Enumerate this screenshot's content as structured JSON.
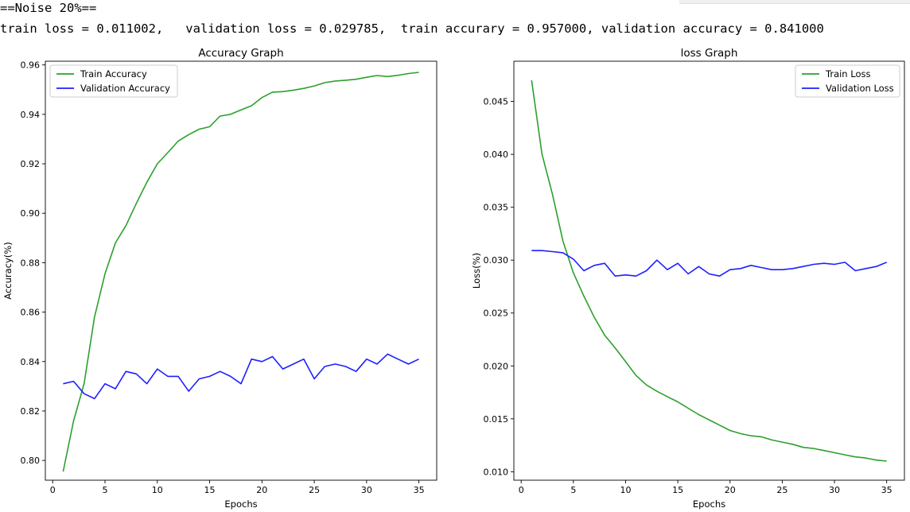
{
  "console": {
    "line1": "==Noise 20%==",
    "line2": "train loss = 0.011002,   validation loss = 0.029785,  train accurary = 0.957000, validation accuracy = 0.841000"
  },
  "chart_data": [
    {
      "type": "line",
      "title": "Accuracy Graph",
      "xlabel": "Epochs",
      "ylabel": "Accuracy(%)",
      "xlim": [
        -0.7,
        36.7
      ],
      "ylim": [
        0.792,
        0.9615
      ],
      "xticks": [
        0,
        5,
        10,
        15,
        20,
        25,
        30,
        35
      ],
      "yticks": [
        0.8,
        0.82,
        0.84,
        0.86,
        0.88,
        0.9,
        0.92,
        0.94,
        0.96
      ],
      "ytick_labels": [
        "0.80",
        "0.82",
        "0.84",
        "0.86",
        "0.88",
        "0.90",
        "0.92",
        "0.94",
        "0.96"
      ],
      "legend": "top-left",
      "x": [
        1,
        2,
        3,
        4,
        5,
        6,
        7,
        8,
        9,
        10,
        11,
        12,
        13,
        14,
        15,
        16,
        17,
        18,
        19,
        20,
        21,
        22,
        23,
        24,
        25,
        26,
        27,
        28,
        29,
        30,
        31,
        32,
        33,
        34,
        35
      ],
      "series": [
        {
          "name": "Train Accuracy",
          "color": "#2ca02c",
          "values": [
            0.7955,
            0.816,
            0.831,
            0.858,
            0.8755,
            0.888,
            0.895,
            0.904,
            0.9125,
            0.92,
            0.9245,
            0.9292,
            0.9318,
            0.934,
            0.935,
            0.9393,
            0.94,
            0.9418,
            0.9435,
            0.9468,
            0.949,
            0.9492,
            0.9498,
            0.9505,
            0.9515,
            0.9528,
            0.9535,
            0.9538,
            0.9542,
            0.955,
            0.9557,
            0.9553,
            0.9558,
            0.9565,
            0.957
          ]
        },
        {
          "name": "Validation Accuracy",
          "color": "#1f1fff",
          "values": [
            0.831,
            0.832,
            0.827,
            0.825,
            0.831,
            0.829,
            0.836,
            0.835,
            0.831,
            0.837,
            0.834,
            0.834,
            0.828,
            0.833,
            0.834,
            0.836,
            0.834,
            0.831,
            0.841,
            0.84,
            0.842,
            0.837,
            0.839,
            0.841,
            0.833,
            0.838,
            0.839,
            0.838,
            0.836,
            0.841,
            0.839,
            0.843,
            0.841,
            0.839,
            0.841
          ]
        }
      ]
    },
    {
      "type": "line",
      "title": "loss Graph",
      "xlabel": "Epochs",
      "ylabel": "Loss(%)",
      "xlim": [
        -0.7,
        36.7
      ],
      "ylim": [
        0.0092,
        0.0488
      ],
      "xticks": [
        0,
        5,
        10,
        15,
        20,
        25,
        30,
        35
      ],
      "yticks": [
        0.01,
        0.015,
        0.02,
        0.025,
        0.03,
        0.035,
        0.04,
        0.045
      ],
      "ytick_labels": [
        "0.010",
        "0.015",
        "0.020",
        "0.025",
        "0.030",
        "0.035",
        "0.040",
        "0.045"
      ],
      "legend": "top-right",
      "x": [
        1,
        2,
        3,
        4,
        5,
        6,
        7,
        8,
        9,
        10,
        11,
        12,
        13,
        14,
        15,
        16,
        17,
        18,
        19,
        20,
        21,
        22,
        23,
        24,
        25,
        26,
        27,
        28,
        29,
        30,
        31,
        32,
        33,
        34,
        35
      ],
      "series": [
        {
          "name": "Train Loss",
          "color": "#2ca02c",
          "values": [
            0.047,
            0.04,
            0.0362,
            0.0318,
            0.0288,
            0.0266,
            0.0246,
            0.0229,
            0.0217,
            0.0204,
            0.0191,
            0.0182,
            0.0176,
            0.0171,
            0.0166,
            0.016,
            0.0154,
            0.0149,
            0.0144,
            0.0139,
            0.0136,
            0.0134,
            0.0133,
            0.013,
            0.0128,
            0.0126,
            0.0123,
            0.0122,
            0.012,
            0.0118,
            0.0116,
            0.0114,
            0.0113,
            0.0111,
            0.011
          ]
        },
        {
          "name": "Validation Loss",
          "color": "#1f1fff",
          "values": [
            0.0309,
            0.0309,
            0.0308,
            0.0307,
            0.0301,
            0.029,
            0.0295,
            0.0297,
            0.0285,
            0.0286,
            0.0285,
            0.029,
            0.03,
            0.0291,
            0.0297,
            0.0287,
            0.0294,
            0.0287,
            0.0285,
            0.0291,
            0.0292,
            0.0295,
            0.0293,
            0.0291,
            0.0291,
            0.0292,
            0.0294,
            0.0296,
            0.0297,
            0.0296,
            0.0298,
            0.029,
            0.0292,
            0.0294,
            0.0298
          ]
        }
      ]
    }
  ]
}
